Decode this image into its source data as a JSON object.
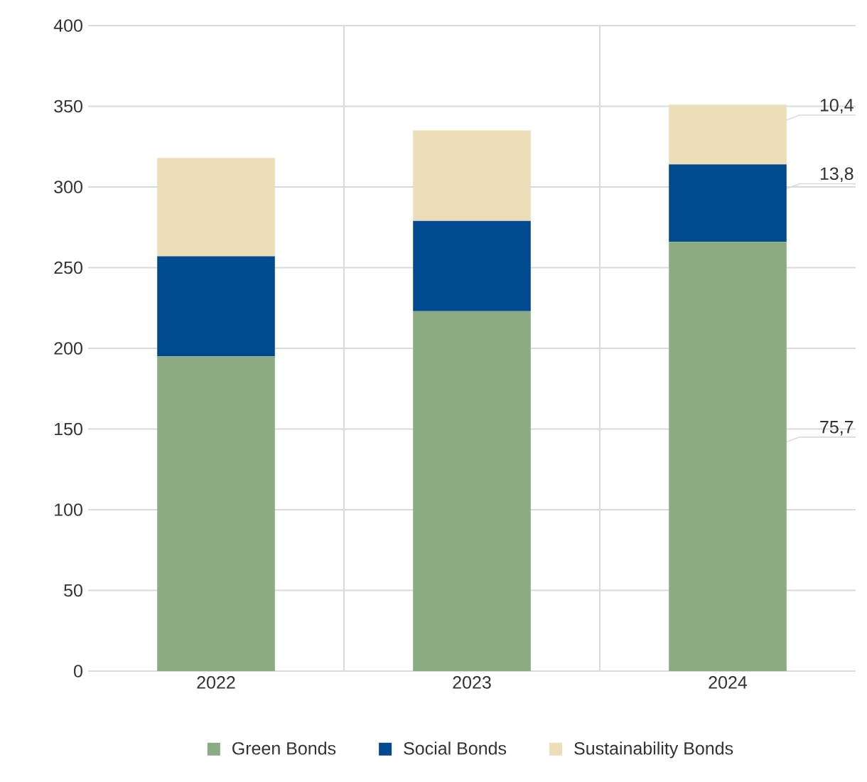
{
  "chart_data": {
    "type": "bar",
    "stacked": true,
    "categories": [
      "2022",
      "2023",
      "2024"
    ],
    "series": [
      {
        "name": "Green Bonds",
        "color": "#8bab82",
        "values": [
          195,
          223,
          266
        ]
      },
      {
        "name": "Social Bonds",
        "color": "#024a8f",
        "values": [
          62,
          56,
          48
        ]
      },
      {
        "name": "Sustainability Bonds",
        "color": "#ecdeb8",
        "values": [
          61,
          56,
          37
        ]
      }
    ],
    "annotations": [
      "75,7",
      "13,8",
      "10,4"
    ],
    "ylim": [
      0,
      400
    ],
    "yticks": [
      0,
      50,
      100,
      150,
      200,
      250,
      300,
      350,
      400
    ],
    "grid": true,
    "legend": "bottom"
  }
}
